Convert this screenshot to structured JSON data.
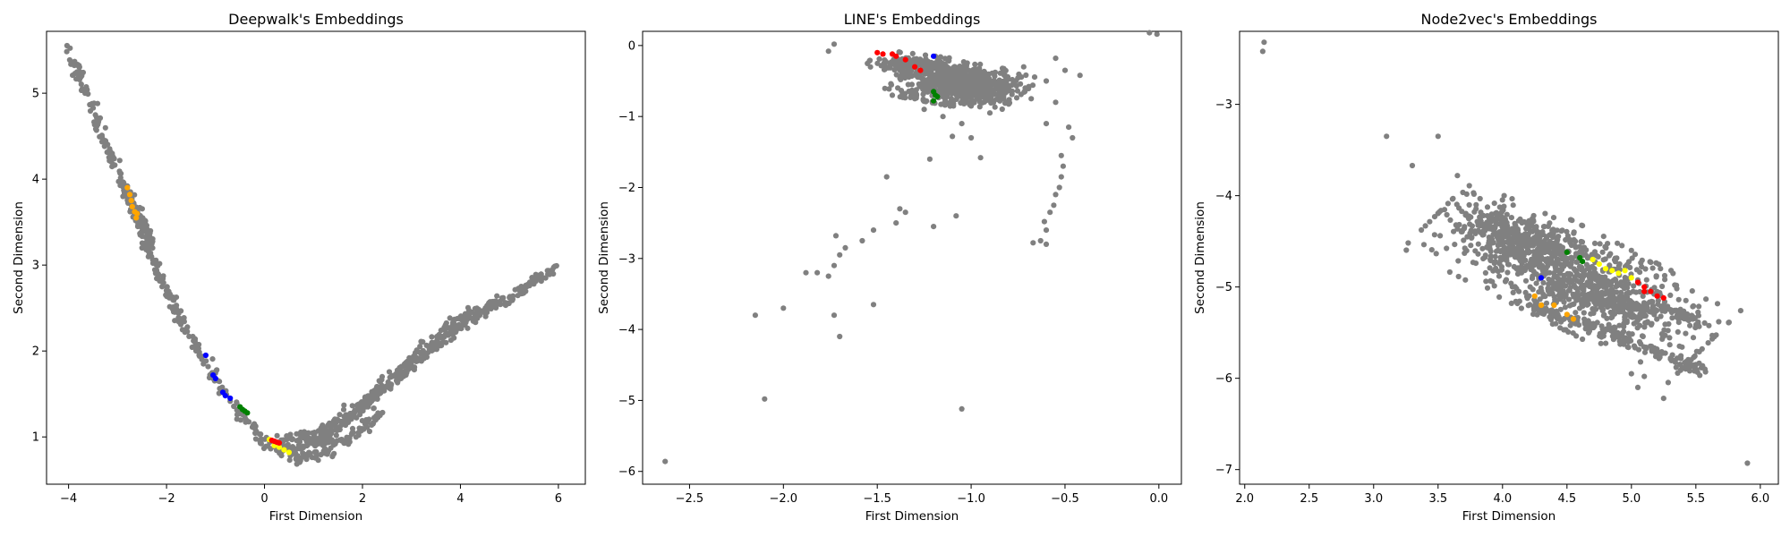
{
  "chart_data": [
    {
      "type": "scatter",
      "title": "Deepwalk's Embeddings",
      "xlabel": "First Dimension",
      "ylabel": "Second Dimension",
      "xlim": [
        -4.45,
        6.55
      ],
      "ylim": [
        0.45,
        5.72
      ],
      "xticks": [
        -4,
        -2,
        0,
        2,
        4,
        6
      ],
      "yticks": [
        1,
        2,
        3,
        4,
        5
      ],
      "xtick_labels": [
        "−4",
        "−2",
        "0",
        "2",
        "4",
        "6"
      ],
      "ytick_labels": [
        "1",
        "2",
        "3",
        "4",
        "5"
      ],
      "grid": false,
      "legend": "none",
      "background_color": "#808080",
      "structures": [
        {
          "kind": "band",
          "count": 420,
          "spread": 0.04,
          "path": [
            [
              -4.0,
              5.52
            ],
            [
              -3.6,
              4.95
            ],
            [
              -3.2,
              4.35
            ],
            [
              -2.8,
              3.85
            ],
            [
              -2.4,
              3.2
            ],
            [
              -2.0,
              2.7
            ],
            [
              -1.6,
              2.25
            ],
            [
              -1.2,
              1.85
            ],
            [
              -0.8,
              1.5
            ],
            [
              -0.4,
              1.2
            ],
            [
              -0.1,
              1.0
            ],
            [
              0.2,
              0.9
            ],
            [
              0.6,
              0.78
            ],
            [
              1.0,
              0.78
            ],
            [
              1.5,
              0.9
            ],
            [
              2.0,
              1.1
            ],
            [
              2.4,
              1.3
            ]
          ]
        },
        {
          "kind": "band",
          "count": 300,
          "spread": 0.035,
          "path": [
            [
              0.2,
              0.95
            ],
            [
              1.0,
              1.0
            ],
            [
              2.0,
              1.4
            ],
            [
              3.0,
              1.9
            ],
            [
              4.0,
              2.4
            ],
            [
              5.0,
              2.6
            ],
            [
              6.0,
              3.0
            ]
          ]
        },
        {
          "kind": "band",
          "count": 260,
          "spread": 0.03,
          "path": [
            [
              0.3,
              0.85
            ],
            [
              1.2,
              0.95
            ],
            [
              2.0,
              1.35
            ],
            [
              3.0,
              1.8
            ],
            [
              4.0,
              2.3
            ],
            [
              4.6,
              2.5
            ]
          ]
        },
        {
          "kind": "band",
          "count": 120,
          "spread": 0.035,
          "path": [
            [
              -2.8,
              3.8
            ],
            [
              -2.6,
              3.6
            ],
            [
              -2.4,
              3.4
            ],
            [
              -2.3,
              3.2
            ]
          ]
        }
      ],
      "highlighted": [
        {
          "color": "#ffa500",
          "points": [
            [
              -2.8,
              3.9
            ],
            [
              -2.75,
              3.82
            ],
            [
              -2.72,
              3.75
            ],
            [
              -2.7,
              3.68
            ],
            [
              -2.65,
              3.62
            ],
            [
              -2.6,
              3.6
            ],
            [
              -2.62,
              3.55
            ]
          ]
        },
        {
          "color": "#0000ff",
          "points": [
            [
              -1.2,
              1.95
            ],
            [
              -1.05,
              1.72
            ],
            [
              -1.0,
              1.68
            ],
            [
              -0.85,
              1.52
            ],
            [
              -0.8,
              1.48
            ],
            [
              -0.7,
              1.45
            ]
          ]
        },
        {
          "color": "#008000",
          "points": [
            [
              -0.5,
              1.35
            ],
            [
              -0.45,
              1.32
            ],
            [
              -0.4,
              1.3
            ],
            [
              -0.35,
              1.28
            ]
          ]
        },
        {
          "color": "#ffff00",
          "points": [
            [
              0.1,
              0.97
            ],
            [
              0.2,
              0.9
            ],
            [
              0.3,
              0.88
            ],
            [
              0.4,
              0.85
            ],
            [
              0.5,
              0.82
            ]
          ]
        },
        {
          "color": "#ff0000",
          "points": [
            [
              0.15,
              0.96
            ],
            [
              0.2,
              0.95
            ],
            [
              0.25,
              0.94
            ],
            [
              0.3,
              0.93
            ]
          ]
        }
      ]
    },
    {
      "type": "scatter",
      "title": "LINE's Embeddings",
      "xlabel": "First Dimension",
      "ylabel": "Second Dimension",
      "xlim": [
        -2.75,
        0.12
      ],
      "ylim": [
        -6.18,
        0.2
      ],
      "xticks": [
        -2.5,
        -2.0,
        -1.5,
        -1.0,
        -0.5,
        0.0
      ],
      "yticks": [
        -6,
        -5,
        -4,
        -3,
        -2,
        -1,
        0
      ],
      "xtick_labels": [
        "−2.5",
        "−2.0",
        "−1.5",
        "−1.0",
        "−0.5",
        "0.0"
      ],
      "ytick_labels": [
        "−6",
        "−5",
        "−4",
        "−3",
        "−2",
        "−1",
        "0"
      ],
      "grid": false,
      "legend": "none",
      "background_color": "#808080",
      "structures": [
        {
          "kind": "blob",
          "count": 700,
          "center": [
            -1.05,
            -0.55
          ],
          "sx": 0.15,
          "sy": 0.13,
          "rot": -0.45
        },
        {
          "kind": "blob",
          "count": 160,
          "center": [
            -1.32,
            -0.28
          ],
          "sx": 0.1,
          "sy": 0.07,
          "rot": -0.3
        }
      ],
      "scattered": [
        [
          -1.73,
          0.02
        ],
        [
          -1.76,
          -0.08
        ],
        [
          -0.05,
          0.18
        ],
        [
          -0.01,
          0.16
        ],
        [
          -0.55,
          -0.18
        ],
        [
          -0.5,
          -0.35
        ],
        [
          -0.42,
          -0.42
        ],
        [
          -0.6,
          -0.5
        ],
        [
          -0.72,
          -0.3
        ],
        [
          -0.7,
          -0.6
        ],
        [
          -0.68,
          -0.75
        ],
        [
          -0.55,
          -0.8
        ],
        [
          -0.6,
          -1.1
        ],
        [
          -0.48,
          -1.15
        ],
        [
          -0.46,
          -1.3
        ],
        [
          -0.9,
          -0.95
        ],
        [
          -1.05,
          -1.1
        ],
        [
          -1.0,
          -1.3
        ],
        [
          -1.1,
          -1.28
        ],
        [
          -1.15,
          -1.0
        ],
        [
          -1.25,
          -0.9
        ],
        [
          -1.3,
          -0.75
        ],
        [
          -1.42,
          -0.7
        ],
        [
          -1.22,
          -1.6
        ],
        [
          -0.95,
          -1.58
        ],
        [
          -1.45,
          -1.85
        ],
        [
          -0.52,
          -1.55
        ],
        [
          -0.51,
          -1.7
        ],
        [
          -0.52,
          -1.85
        ],
        [
          -0.53,
          -2.0
        ],
        [
          -0.55,
          -2.1
        ],
        [
          -0.56,
          -2.25
        ],
        [
          -0.58,
          -2.35
        ],
        [
          -0.61,
          -2.48
        ],
        [
          -0.6,
          -2.6
        ],
        [
          -0.63,
          -2.75
        ],
        [
          -0.6,
          -2.8
        ],
        [
          -0.67,
          -2.78
        ],
        [
          -1.38,
          -2.3
        ],
        [
          -1.35,
          -2.35
        ],
        [
          -1.4,
          -2.5
        ],
        [
          -1.2,
          -2.55
        ],
        [
          -1.08,
          -2.4
        ],
        [
          -1.52,
          -2.6
        ],
        [
          -1.58,
          -2.75
        ],
        [
          -1.67,
          -2.85
        ],
        [
          -1.7,
          -2.95
        ],
        [
          -1.73,
          -3.1
        ],
        [
          -1.72,
          -2.68
        ],
        [
          -1.82,
          -3.2
        ],
        [
          -1.88,
          -3.2
        ],
        [
          -1.76,
          -3.25
        ],
        [
          -1.52,
          -3.65
        ],
        [
          -1.73,
          -3.8
        ],
        [
          -1.7,
          -4.1
        ],
        [
          -2.0,
          -3.7
        ],
        [
          -2.15,
          -3.8
        ],
        [
          -2.1,
          -4.98
        ],
        [
          -1.05,
          -5.12
        ],
        [
          -2.63,
          -5.86
        ]
      ],
      "highlighted": [
        {
          "color": "#ff0000",
          "points": [
            [
              -1.5,
              -0.1
            ],
            [
              -1.47,
              -0.12
            ],
            [
              -1.42,
              -0.12
            ],
            [
              -1.4,
              -0.15
            ],
            [
              -1.35,
              -0.2
            ],
            [
              -1.3,
              -0.3
            ],
            [
              -1.27,
              -0.35
            ]
          ]
        },
        {
          "color": "#0000ff",
          "points": [
            [
              -1.2,
              -0.15
            ]
          ]
        },
        {
          "color": "#008000",
          "points": [
            [
              -1.2,
              -0.65
            ],
            [
              -1.19,
              -0.7
            ],
            [
              -1.18,
              -0.72
            ],
            [
              -1.2,
              -0.78
            ]
          ]
        }
      ]
    },
    {
      "type": "scatter",
      "title": "Node2vec's Embeddings",
      "xlabel": "First Dimension",
      "ylabel": "Second Dimension",
      "xlim": [
        1.96,
        6.14
      ],
      "ylim": [
        -7.16,
        -2.2
      ],
      "xticks": [
        2.0,
        2.5,
        3.0,
        3.5,
        4.0,
        4.5,
        5.0,
        5.5,
        6.0
      ],
      "yticks": [
        -7,
        -6,
        -5,
        -4,
        -3
      ],
      "xtick_labels": [
        "2.0",
        "2.5",
        "3.0",
        "3.5",
        "4.0",
        "4.5",
        "5.0",
        "5.5",
        "6.0"
      ],
      "ytick_labels": [
        "−7",
        "−6",
        "−5",
        "−4",
        "−3"
      ],
      "grid": false,
      "legend": "none",
      "background_color": "#808080",
      "structures": [
        {
          "kind": "blob",
          "count": 900,
          "center": [
            4.55,
            -4.9
          ],
          "sx": 0.55,
          "sy": 0.22,
          "rot": -0.62
        },
        {
          "kind": "blob",
          "count": 250,
          "center": [
            4.1,
            -4.45
          ],
          "sx": 0.25,
          "sy": 0.12,
          "rot": -0.6
        },
        {
          "kind": "band",
          "count": 180,
          "spread": 0.03,
          "path": [
            [
              4.2,
              -5.2
            ],
            [
              4.6,
              -5.4
            ],
            [
              5.0,
              -5.6
            ],
            [
              5.4,
              -5.85
            ],
            [
              5.55,
              -5.9
            ]
          ]
        },
        {
          "kind": "band",
          "count": 120,
          "spread": 0.03,
          "path": [
            [
              4.6,
              -5.1
            ],
            [
              5.0,
              -5.2
            ],
            [
              5.3,
              -5.25
            ],
            [
              5.55,
              -5.4
            ]
          ]
        }
      ],
      "scattered": [
        [
          2.15,
          -2.32
        ],
        [
          2.14,
          -2.42
        ],
        [
          3.1,
          -3.35
        ],
        [
          3.3,
          -3.67
        ],
        [
          3.5,
          -3.35
        ],
        [
          3.65,
          -3.78
        ],
        [
          5.0,
          -5.95
        ],
        [
          5.05,
          -6.1
        ],
        [
          5.1,
          -5.98
        ],
        [
          5.25,
          -6.22
        ],
        [
          5.5,
          -5.85
        ],
        [
          5.57,
          -5.9
        ],
        [
          5.9,
          -6.93
        ]
      ],
      "highlighted": [
        {
          "color": "#ffff00",
          "points": [
            [
              4.7,
              -4.7
            ],
            [
              4.8,
              -4.8
            ],
            [
              4.85,
              -4.82
            ],
            [
              4.9,
              -4.85
            ],
            [
              4.95,
              -4.82
            ],
            [
              5.0,
              -4.9
            ],
            [
              4.75,
              -4.75
            ]
          ]
        },
        {
          "color": "#ff0000",
          "points": [
            [
              5.05,
              -4.95
            ],
            [
              5.1,
              -5.05
            ],
            [
              5.15,
              -5.05
            ],
            [
              5.2,
              -5.1
            ],
            [
              5.25,
              -5.12
            ],
            [
              5.1,
              -5.0
            ]
          ]
        },
        {
          "color": "#ffa500",
          "points": [
            [
              4.25,
              -5.1
            ],
            [
              4.3,
              -5.2
            ],
            [
              4.4,
              -5.2
            ],
            [
              4.5,
              -5.3
            ],
            [
              4.55,
              -5.35
            ]
          ]
        },
        {
          "color": "#0000ff",
          "points": [
            [
              4.3,
              -4.9
            ]
          ]
        },
        {
          "color": "#008000",
          "points": [
            [
              4.6,
              -4.68
            ],
            [
              4.62,
              -4.72
            ],
            [
              4.5,
              -4.62
            ]
          ]
        }
      ]
    }
  ]
}
